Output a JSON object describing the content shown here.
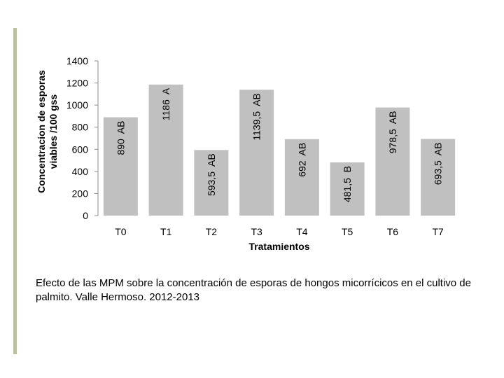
{
  "chart_data": {
    "type": "bar",
    "categories": [
      "T0",
      "T1",
      "T2",
      "T3",
      "T4",
      "T5",
      "T6",
      "T7"
    ],
    "values": [
      890,
      1186,
      593.5,
      1139.5,
      692,
      481.5,
      978.5,
      693.5
    ],
    "data_labels": [
      "890  AB",
      "1186  A",
      "593,5  AB",
      "1139,5  AB",
      "692  AB",
      "481,5  B",
      "978,5  AB",
      "693,5  AB"
    ],
    "xlabel": "Tratamientos",
    "ylabel_lines": [
      "Concentracion de esporas",
      "viables /100 gss"
    ],
    "ylim": [
      0,
      1400
    ],
    "yticks": [
      0,
      200,
      400,
      600,
      800,
      1000,
      1200,
      1400
    ],
    "grid": false,
    "bar_color": "#c0c0c0"
  },
  "caption": "Efecto de las MPM sobre la concentración de esporas de hongos micorrícicos en el cultivo de palmito. Valle Hermoso. 2012-2013",
  "colors": {
    "accent_bar": "#b9c39a"
  }
}
